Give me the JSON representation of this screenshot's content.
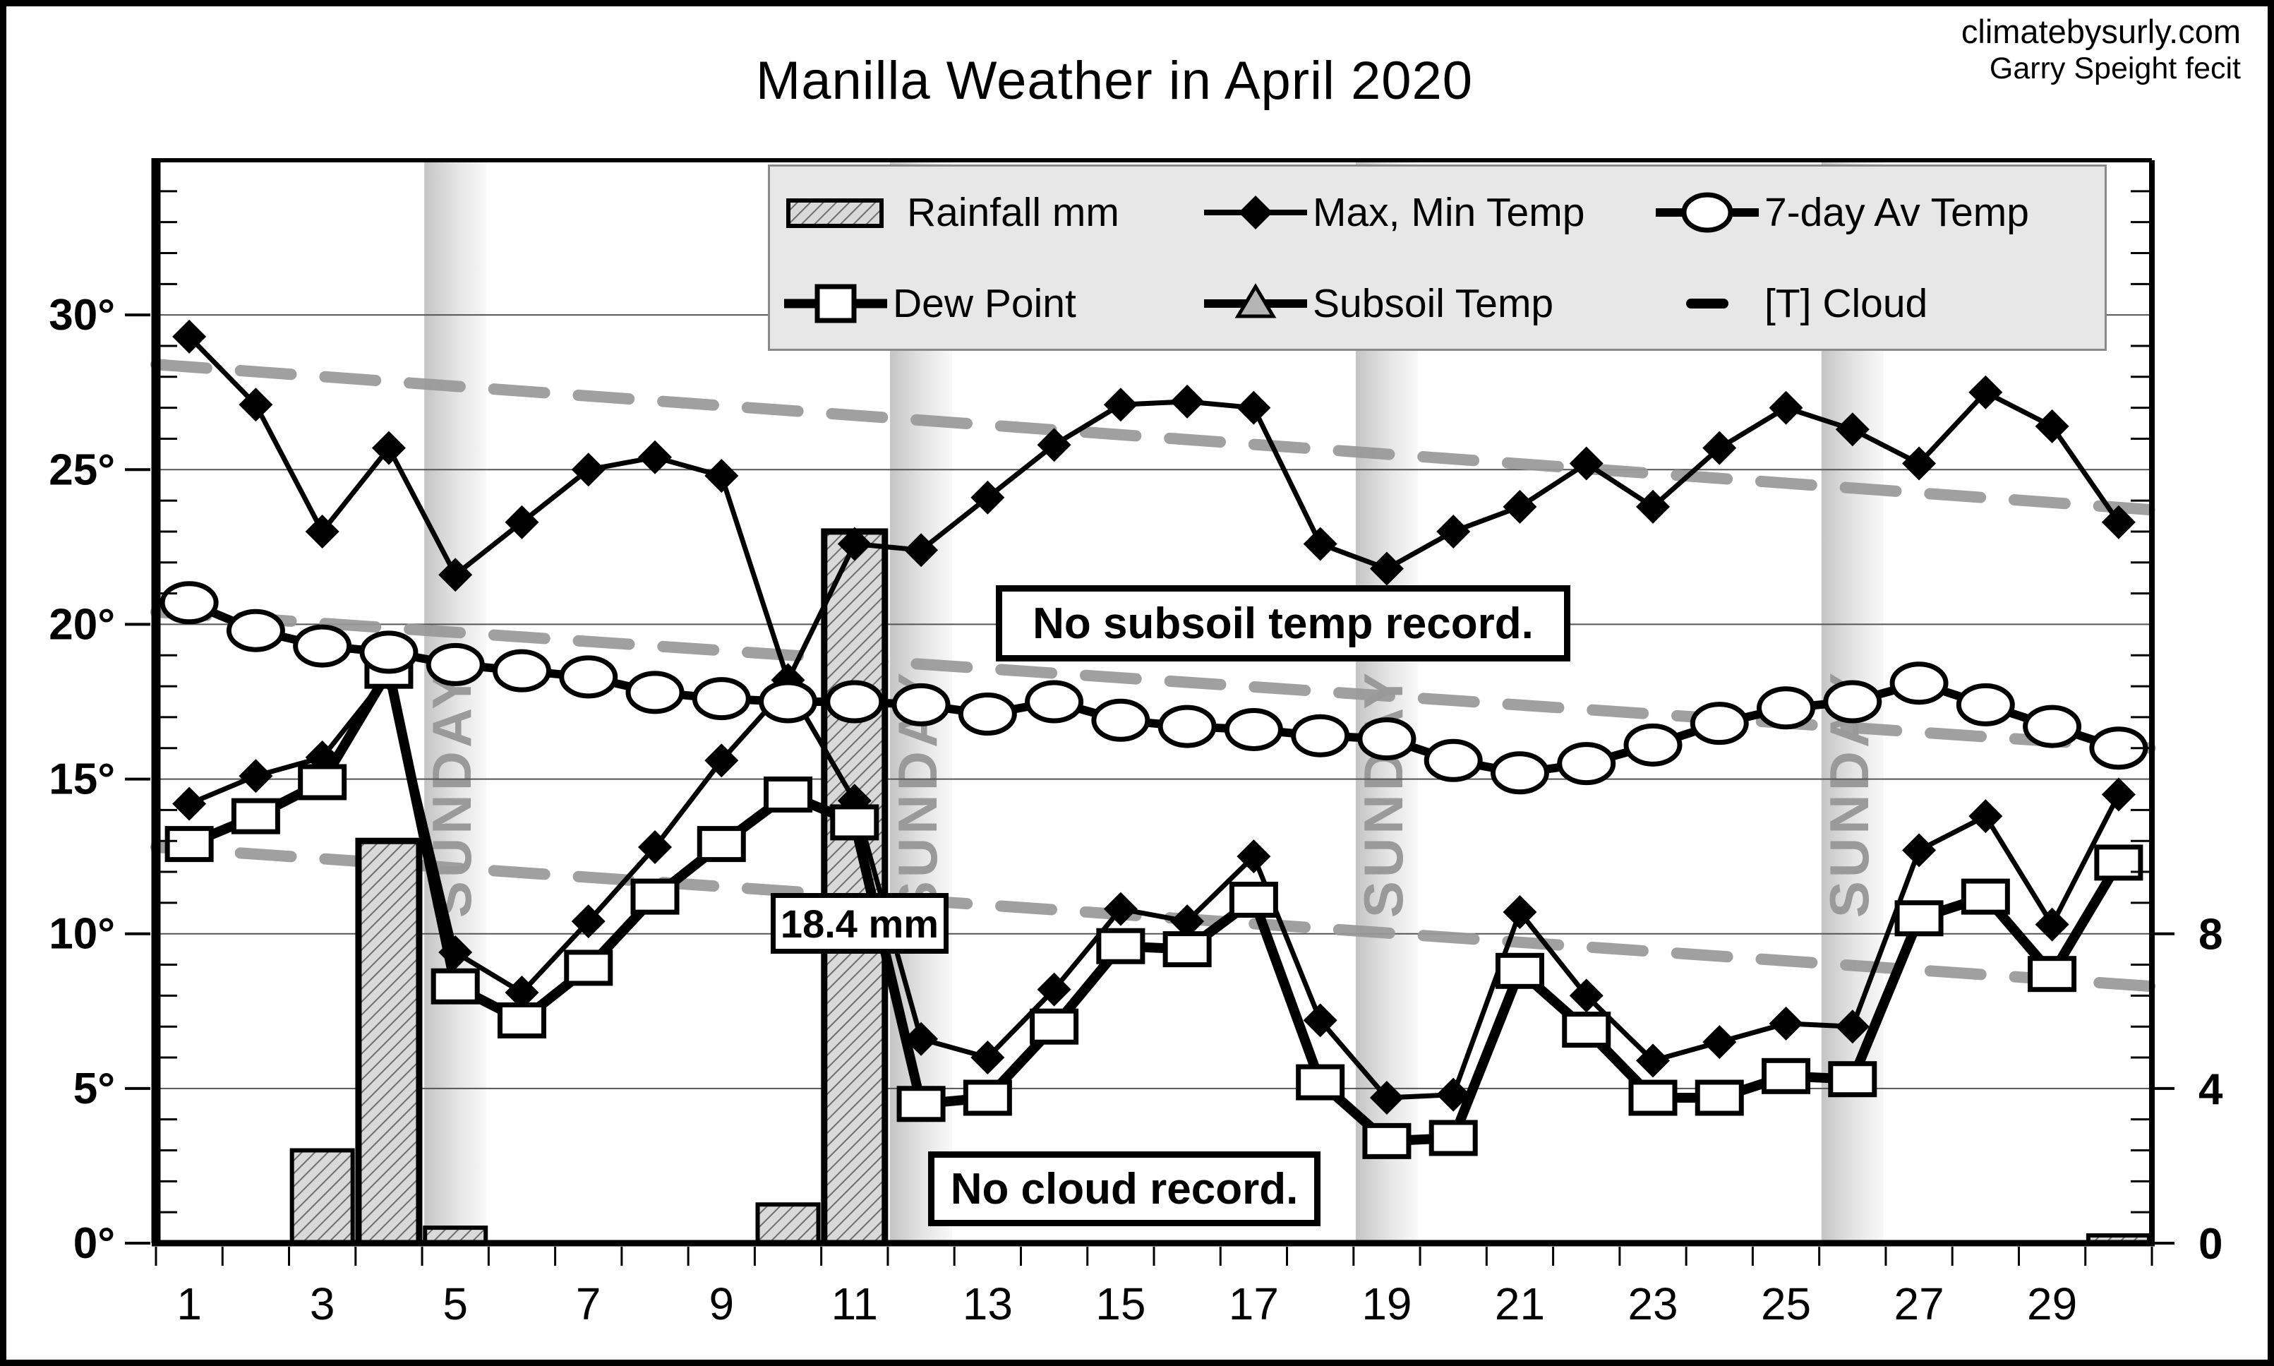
{
  "header": {
    "site": "climatebysurly.com",
    "credit": "Garry Speight fecit"
  },
  "title": "Manilla Weather in April 2020",
  "legend": {
    "items": [
      {
        "label": "Rainfall mm",
        "icon": "rainfall-swatch"
      },
      {
        "label": "Max, Min Temp",
        "icon": "max-min-temp-swatch"
      },
      {
        "label": "7-day Av Temp",
        "icon": "avg-temp-swatch"
      },
      {
        "label": "Dew Point",
        "icon": "dew-point-swatch"
      },
      {
        "label": "Subsoil Temp",
        "icon": "subsoil-temp-swatch"
      },
      {
        "label": "[T] Cloud",
        "icon": "cloud-swatch"
      }
    ]
  },
  "annotations": {
    "no_subsoil": "No subsoil temp record.",
    "no_cloud": "No cloud record.",
    "rain_label": "18.4 mm"
  },
  "sunday_label": "SUNDAY",
  "axes": {
    "left": {
      "tick_values": [
        0,
        5,
        10,
        15,
        20,
        25,
        30
      ],
      "tick_labels": [
        "0°",
        "5°",
        "10°",
        "15°",
        "20°",
        "25°",
        "30°"
      ],
      "max_temp": 35
    },
    "right": {
      "tick_values": [
        0,
        5,
        10
      ],
      "tick_labels": [
        "0",
        "4",
        "8"
      ]
    },
    "x": {
      "label_days": [
        1,
        3,
        5,
        7,
        9,
        11,
        13,
        15,
        17,
        19,
        21,
        23,
        25,
        27,
        29
      ],
      "num_days": 30
    }
  },
  "chart_data": {
    "type": "line+bar",
    "title": "Manilla Weather in April 2020",
    "x_days": [
      1,
      2,
      3,
      4,
      5,
      6,
      7,
      8,
      9,
      10,
      11,
      12,
      13,
      14,
      15,
      16,
      17,
      18,
      19,
      20,
      21,
      22,
      23,
      24,
      25,
      26,
      27,
      28,
      29,
      30
    ],
    "series": [
      {
        "name": "Max Temp",
        "marker": "filled-diamond",
        "values": [
          29.3,
          27.1,
          23.0,
          25.7,
          21.6,
          23.3,
          25.0,
          25.4,
          24.8,
          18.2,
          22.6,
          22.4,
          24.1,
          25.8,
          27.1,
          27.2,
          27.0,
          22.6,
          21.8,
          23.0,
          23.8,
          25.2,
          23.8,
          25.7,
          27.0,
          26.3,
          25.2,
          27.5,
          26.4,
          23.3
        ]
      },
      {
        "name": "Min Temp",
        "marker": "filled-diamond",
        "values": [
          14.2,
          15.1,
          15.7,
          18.4,
          9.4,
          8.1,
          10.4,
          12.8,
          15.6,
          18.0,
          14.3,
          6.6,
          6.0,
          8.2,
          10.8,
          10.4,
          12.5,
          7.2,
          4.7,
          4.8,
          10.7,
          8.0,
          5.9,
          6.5,
          7.1,
          7.0,
          12.7,
          13.8,
          10.3,
          14.5
        ]
      },
      {
        "name": "7-day Av Temp",
        "marker": "open-circle",
        "values": [
          20.7,
          19.8,
          19.3,
          19.1,
          18.7,
          18.5,
          18.3,
          17.8,
          17.6,
          17.5,
          17.5,
          17.4,
          17.1,
          17.5,
          16.9,
          16.7,
          16.6,
          16.4,
          16.3,
          15.6,
          15.2,
          15.5,
          16.1,
          16.8,
          17.3,
          17.5,
          18.1,
          17.4,
          16.7,
          16.0
        ]
      },
      {
        "name": "Dew Point",
        "marker": "open-square",
        "values": [
          12.9,
          13.8,
          14.9,
          18.5,
          8.3,
          7.2,
          8.9,
          11.2,
          12.9,
          14.5,
          13.6,
          4.5,
          4.7,
          7.0,
          9.6,
          9.5,
          11.1,
          5.2,
          3.3,
          3.4,
          8.8,
          6.9,
          4.7,
          4.7,
          5.4,
          5.3,
          10.5,
          11.2,
          8.7,
          12.3
        ]
      }
    ],
    "rainfall_mm": [
      0,
      0,
      2.4,
      10.4,
      0.4,
      0,
      0,
      0,
      0,
      1.0,
      18.4,
      0,
      0,
      0,
      0,
      0,
      0,
      0,
      0,
      0,
      0,
      0,
      0,
      0,
      0,
      0,
      0,
      0,
      0,
      0.2
    ],
    "rain_mm_per_temp_unit": 0.8,
    "ylim_temp": [
      0,
      35
    ],
    "ylim_rain_mm": [
      0,
      28
    ],
    "trend_lines": [
      {
        "name": "max-temp-trend",
        "start": 28.4,
        "end": 23.7
      },
      {
        "name": "avg-temp-trend",
        "start": 20.4,
        "end": 16.0
      },
      {
        "name": "dew-point-trend",
        "start": 12.8,
        "end": 8.3
      }
    ],
    "sunday_days": [
      5,
      12,
      19,
      26
    ],
    "missing_series_notes": [
      "No subsoil temp record.",
      "No cloud record."
    ],
    "grid": "horizontal-5deg",
    "legend_position": "top-center"
  },
  "colors": {
    "series": "#000000",
    "trend": "#999999",
    "legend_bg": "#e7e7e7",
    "band_gray": "#c4c4c4",
    "bar_fill_base": "#d9d9d9",
    "sunday_text": "#9a9a9a"
  }
}
